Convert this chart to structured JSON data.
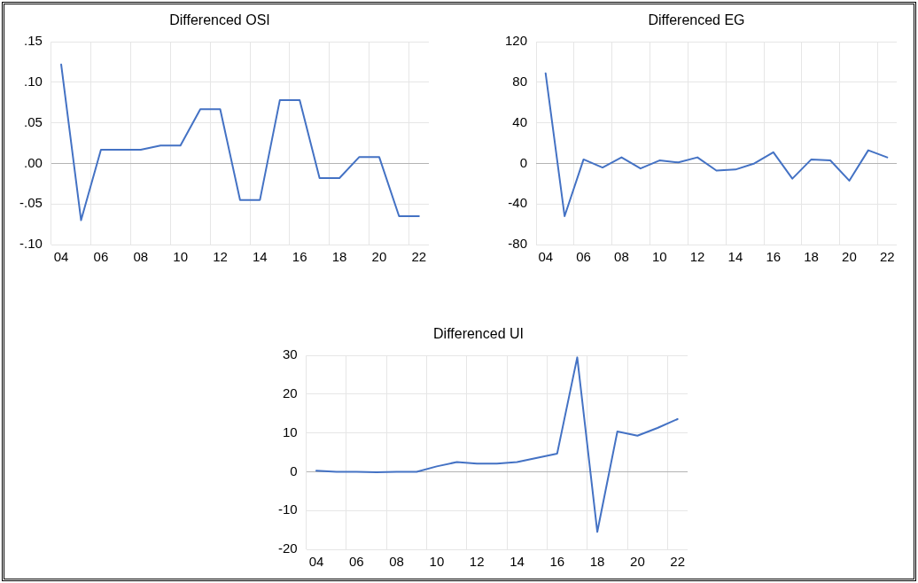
{
  "chart_data": [
    {
      "type": "line",
      "title": "Differenced OSI",
      "categories": [
        "04",
        null,
        "06",
        null,
        "08",
        null,
        "10",
        null,
        "12",
        null,
        "14",
        null,
        "16",
        null,
        "18",
        null,
        "20",
        null,
        "22"
      ],
      "series": [
        {
          "color": "#4472c4",
          "values": [
            0.122,
            -0.07,
            0.017,
            0.017,
            0.017,
            0.022,
            0.022,
            0.067,
            0.067,
            -0.045,
            -0.045,
            0.078,
            0.078,
            -0.018,
            -0.018,
            0.008,
            0.008,
            -0.065,
            -0.065
          ]
        }
      ],
      "ylim": [
        -0.1,
        0.15
      ],
      "yticks": [
        {
          "value": -0.1,
          "label": "-.10"
        },
        {
          "value": -0.05,
          "label": "-.05"
        },
        {
          "value": 0,
          "label": ".00"
        },
        {
          "value": 0.05,
          "label": ".05"
        },
        {
          "value": 0.1,
          "label": ".10"
        },
        {
          "value": 0.15,
          "label": ".15"
        }
      ],
      "grid": true,
      "legend": false,
      "marker": "none",
      "line_style": "solid"
    },
    {
      "type": "line",
      "title": "Differenced EG",
      "categories": [
        "04",
        null,
        "06",
        null,
        "08",
        null,
        "10",
        null,
        "12",
        null,
        "14",
        null,
        "16",
        null,
        "18",
        null,
        "20",
        null,
        "22"
      ],
      "series": [
        {
          "color": "#4472c4",
          "values": [
            89,
            -52,
            4,
            -4,
            6,
            -5,
            3,
            1,
            6,
            -7,
            -6,
            0,
            11,
            -15,
            4,
            3,
            -17,
            13,
            6
          ]
        }
      ],
      "ylim": [
        -80,
        120
      ],
      "yticks": [
        -80,
        -40,
        0,
        40,
        80,
        120
      ],
      "grid": true,
      "legend": false,
      "marker": "none",
      "line_style": "solid"
    },
    {
      "type": "line",
      "title": "Differenced UI",
      "categories": [
        "04",
        null,
        "06",
        null,
        "08",
        null,
        "10",
        null,
        "12",
        null,
        "14",
        null,
        "16",
        null,
        "18",
        null,
        "20",
        null,
        "22"
      ],
      "series": [
        {
          "color": "#4472c4",
          "values": [
            0.3,
            0,
            0,
            -0.1,
            0,
            0,
            1.4,
            2.5,
            2.1,
            2.1,
            2.5,
            3.6,
            4.7,
            29.5,
            -15.5,
            10.4,
            9.3,
            11.3,
            13.6
          ]
        }
      ],
      "ylim": [
        -20,
        30
      ],
      "yticks": [
        -20,
        -10,
        0,
        10,
        20,
        30
      ],
      "grid": true,
      "legend": false,
      "marker": "none",
      "line_style": "solid"
    }
  ]
}
